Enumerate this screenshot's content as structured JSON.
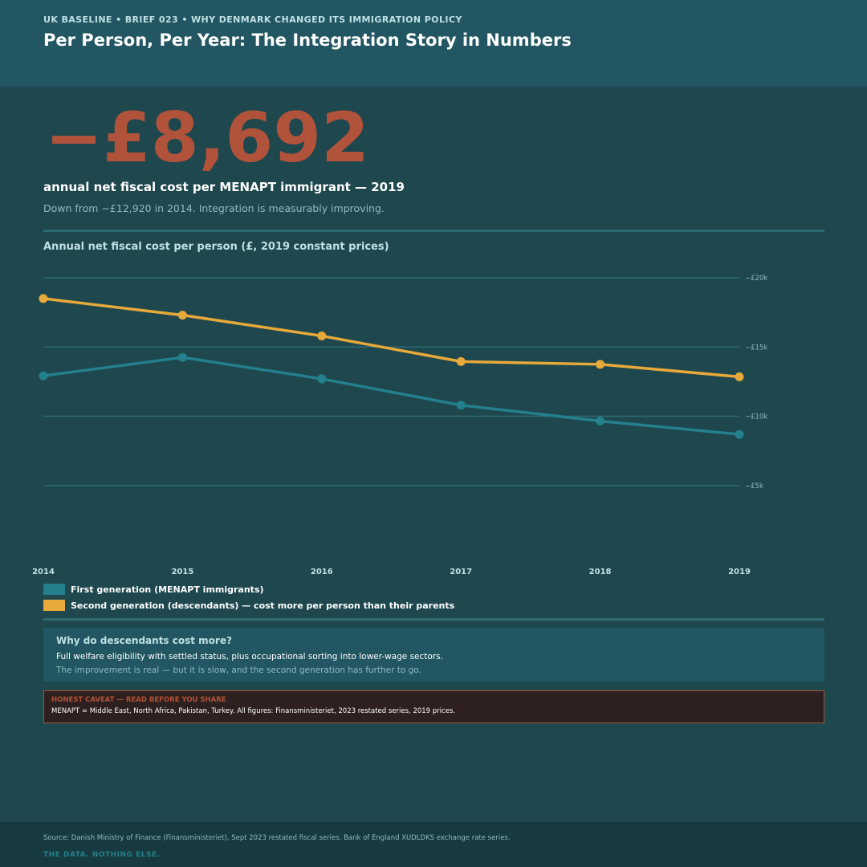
{
  "header": {
    "eyebrow": "UK BASELINE  •  BRIEF 023  •  WHY DENMARK CHANGED ITS IMMIGRATION POLICY",
    "title": "Per Person, Per Year: The Integration Story in Numbers"
  },
  "kpi": {
    "value": "−£8,692",
    "label": "annual net fiscal cost per MENAPT immigrant — 2019",
    "subtitle": "Down from −£12,920 in 2014. Integration is measurably improving."
  },
  "chart_title": "Annual net fiscal cost per person (£, 2019 constant prices)",
  "chart_data": {
    "type": "line",
    "title": "Annual net fiscal cost per person (£, 2019 constant prices)",
    "xlabel": "",
    "ylabel": "",
    "categories": [
      "2014",
      "2015",
      "2016",
      "2017",
      "2018",
      "2019"
    ],
    "ylim": [
      0,
      20000
    ],
    "yticks": [
      5000,
      10000,
      15000,
      20000
    ],
    "ytick_labels": [
      "−£5k",
      "−£10k",
      "−£15k",
      "−£20k"
    ],
    "grid": true,
    "legend_position": "bottom-left",
    "series": [
      {
        "name": "First generation (MENAPT immigrants)",
        "color": "#23808c",
        "values": [
          12920,
          14250,
          12700,
          10800,
          9650,
          8692
        ]
      },
      {
        "name": "Second generation (descendants) — cost more per person than their parents",
        "color": "#e6a93a",
        "values": [
          18500,
          17300,
          15800,
          13950,
          13750,
          12850
        ]
      }
    ]
  },
  "explain": {
    "heading": "Why do descendants cost more?",
    "line1": "Full welfare eligibility with settled status, plus occupational sorting into lower-wage sectors.",
    "line2": "The improvement is real — but it is slow, and the second generation has further to go."
  },
  "caveat": {
    "heading": "HONEST CAVEAT — READ BEFORE YOU SHARE",
    "text": "MENAPT = Middle East, North Africa, Pakistan, Turkey. All figures: Finansministeriet, 2023 restated series, 2019 prices."
  },
  "footer": {
    "source": "Source: Danish Ministry of Finance (Finansministeriet), Sept 2023 restated fiscal series. Bank of England XUDLDKS exchange rate series.",
    "tagline": "THE DATA. NOTHING ELSE."
  },
  "colors": {
    "background": "#1e474e",
    "header": "#215662",
    "accent_red": "#b1523a",
    "first_gen": "#23808c",
    "second_gen": "#e6a93a"
  }
}
